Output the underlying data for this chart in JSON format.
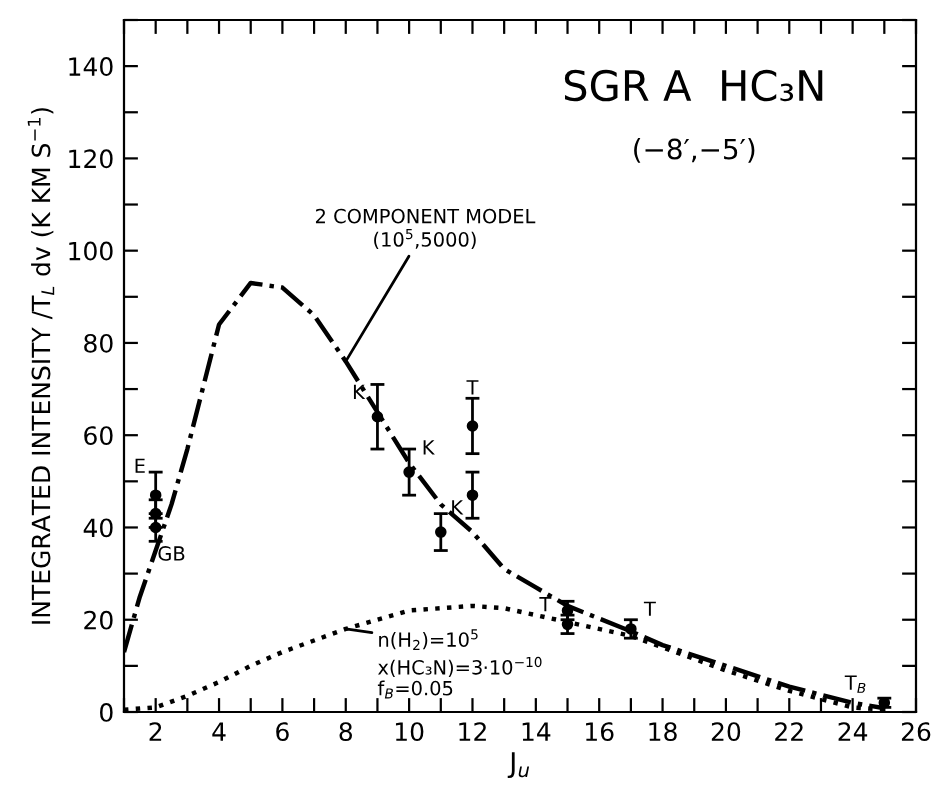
{
  "chart_data": {
    "type": "line",
    "title": "SGR A  HC₃N",
    "subtitle": "(−8′,−5′)",
    "xlabel": "J$_{u}$",
    "ylabel": "INTEGRATED INTENSITY /T$_{L}$ dv (K KM S$^{−1}$)",
    "xlim": [
      1,
      26
    ],
    "ylim": [
      0,
      150
    ],
    "xticks": [
      {
        "value": 1,
        "label": null
      },
      2,
      {
        "value": 3,
        "label": null
      },
      4,
      {
        "value": 5,
        "label": null
      },
      6,
      {
        "value": 7,
        "label": null
      },
      8,
      {
        "value": 9,
        "label": null
      },
      10,
      {
        "value": 11,
        "label": null
      },
      12,
      {
        "value": 13,
        "label": null
      },
      14,
      {
        "value": 15,
        "label": null
      },
      16,
      {
        "value": 17,
        "label": null
      },
      18,
      {
        "value": 19,
        "label": null
      },
      20,
      {
        "value": 21,
        "label": null
      },
      22,
      {
        "value": 23,
        "label": null
      },
      24,
      {
        "value": 25,
        "label": null
      },
      26
    ],
    "yticks": [
      0,
      {
        "value": 10,
        "label": null
      },
      20,
      {
        "value": 30,
        "label": null
      },
      40,
      {
        "value": 50,
        "label": null
      },
      60,
      {
        "value": 70,
        "label": null
      },
      80,
      {
        "value": 90,
        "label": null
      },
      100,
      {
        "value": 110,
        "label": null
      },
      120,
      {
        "value": 130,
        "label": null
      },
      140,
      {
        "value": 150,
        "label": null
      }
    ],
    "grid": false,
    "legend": false,
    "series": [
      {
        "line_style": "dashdot",
        "color": "#000000",
        "x": [
          1,
          1.5,
          2,
          2.5,
          3,
          4,
          5,
          6,
          7,
          8,
          9,
          10,
          11,
          12,
          13,
          14,
          15,
          17,
          18,
          20,
          22,
          24,
          25
        ],
        "values": [
          13,
          25,
          35,
          45,
          57,
          84,
          93,
          92,
          86,
          76,
          65,
          54,
          45,
          39,
          31,
          27,
          23,
          17.5,
          14.5,
          10,
          5.5,
          2,
          0.8
        ]
      },
      {
        "type": "line",
        "line_style": "dotted",
        "color": "#000000",
        "x": [
          1,
          2,
          3,
          4,
          5,
          6,
          7,
          8,
          9,
          10,
          12,
          13,
          14,
          15,
          17,
          20,
          22,
          24,
          25
        ],
        "values": [
          0.5,
          1,
          3.5,
          6.5,
          10,
          13,
          15.5,
          18,
          20,
          22,
          23,
          22.5,
          21,
          19.5,
          16.5,
          9,
          4.6,
          1,
          0.5
        ]
      },
      {
        "type": "scatter",
        "marker": "circle",
        "color": "#000000",
        "x": [
          2,
          2,
          2,
          9,
          10,
          11,
          12,
          12,
          15,
          15,
          17,
          25
        ],
        "values": [
          47,
          43,
          40,
          64,
          52,
          39,
          62,
          47,
          22,
          19,
          18,
          2
        ],
        "errors": [
          5,
          3,
          3,
          7,
          5,
          4,
          6,
          5,
          2,
          2,
          2,
          1
        ]
      }
    ],
    "annotations": [
      {
        "text": "E",
        "x": 2,
        "y": 47
      },
      {
        "text": "GB",
        "x": 2,
        "y": 40
      },
      {
        "text": "K",
        "x": 9,
        "y": 64
      },
      {
        "text": "K",
        "x": 10,
        "y": 52
      },
      {
        "text": "K",
        "x": 11,
        "y": 39
      },
      {
        "text": "T",
        "x": 12,
        "y": 62
      },
      {
        "text": "T",
        "x": 15,
        "y": 19
      },
      {
        "text": "T",
        "x": 17,
        "y": 18
      },
      {
        "text": "T$_{B}$",
        "x": 25,
        "y": 2
      },
      {
        "text": "2 COMPONENT MODEL\n(10$^{5}$,5000)",
        "x": 8,
        "y": 76
      },
      {
        "text": "n(H$_{2}$)=10$^{5}$",
        "x": 8,
        "y": 18
      },
      "x(HC₃N)=3·10$^{−10}$",
      "f$_{B}$=0.05"
    ]
  }
}
